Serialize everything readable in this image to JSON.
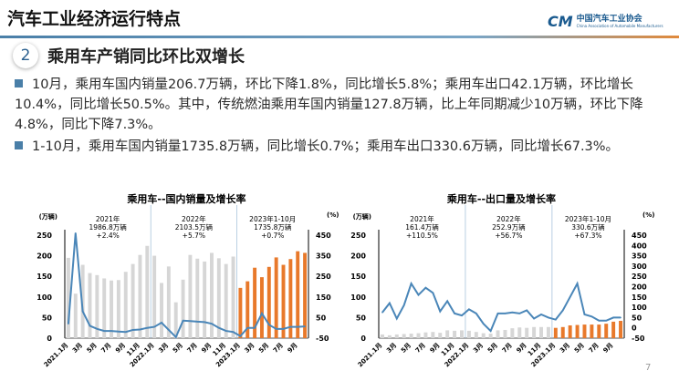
{
  "header": {
    "title": "汽车工业经济运行特点",
    "logo_mark": "CM",
    "logo_text": "中国汽车工业协会",
    "logo_sub": "China Association of Automobile Manufacturers"
  },
  "section": {
    "number": "2",
    "title": "乘用车产销同比环比双增长"
  },
  "bullets": [
    "10月，乘用车国内销量206.7万辆，环比下降1.8%，同比增长5.8%；乘用车出口42.1万辆，环比增长10.4%，同比增长50.5%。其中，传统燃油乘用车国内销量127.8万辆，比上年同期减少10万辆，环比下降4.8%，同比下降7.3%。",
    "1-10月，乘用车国内销量1735.8万辆，同比增长0.7%；乘用车出口330.6万辆，同比增长67.3%。"
  ],
  "page_number": "7",
  "chart_data": [
    {
      "type": "bar+line",
      "title": "乘用车--国内销量及增长率",
      "ylabel": "(万辆)",
      "y2label": "(%)",
      "ylim": [
        0,
        250
      ],
      "y2lim": [
        -50,
        450
      ],
      "yticks": [
        0,
        50,
        100,
        150,
        200,
        250
      ],
      "y2ticks": [
        -50,
        50,
        150,
        250,
        350,
        450
      ],
      "xticklabels": [
        "2021.1月",
        "3月",
        "5月",
        "7月",
        "9月",
        "11月",
        "2022.1月",
        "3月",
        "5月",
        "7月",
        "9月",
        "11月",
        "2023.1月",
        "3月",
        "5月",
        "7月",
        "9月"
      ],
      "annotations": [
        {
          "lines": [
            "2021年",
            "1986.8万辆",
            "+2.4%"
          ]
        },
        {
          "lines": [
            "2022年",
            "2103.5万辆",
            "+5.7%"
          ]
        },
        {
          "lines": [
            "2023年1-10月",
            "1735.8万辆",
            "+0.7%"
          ]
        }
      ],
      "bars": [
        195,
        108,
        178,
        158,
        153,
        145,
        140,
        141,
        161,
        180,
        202,
        224,
        200,
        134,
        174,
        87,
        142,
        202,
        193,
        186,
        207,
        194,
        180,
        198,
        122,
        138,
        171,
        148,
        173,
        196,
        178,
        192,
        211,
        207
      ],
      "growth": [
        20,
        460,
        80,
        10,
        -5,
        -15,
        -15,
        -18,
        -20,
        -10,
        -8,
        0,
        5,
        25,
        -10,
        -45,
        35,
        33,
        30,
        28,
        20,
        0,
        -15,
        -20,
        -40,
        0,
        0,
        70,
        15,
        -5,
        -5,
        5,
        5,
        7
      ],
      "colors": {
        "past": "#d6d6d6",
        "current": "#e8792b",
        "line": "#4a86b8"
      }
    },
    {
      "type": "bar+line",
      "title": "乘用车--出口量及增长率",
      "ylabel": "(万辆)",
      "y2label": "(%)",
      "ylim": [
        0,
        250
      ],
      "y2lim": [
        -50,
        450
      ],
      "yticks": [
        0,
        50,
        100,
        150,
        200,
        250
      ],
      "y2ticks": [
        -50,
        0,
        50,
        100,
        150,
        200,
        250,
        300,
        350,
        400,
        450
      ],
      "xticklabels": [
        "2021.1月",
        "3月",
        "5月",
        "7月",
        "9月",
        "11月",
        "2022.1月",
        "3月",
        "5月",
        "7月",
        "9月",
        "11月",
        "2023.1月",
        "3月",
        "5月",
        "7月",
        "9月"
      ],
      "annotations": [
        {
          "lines": [
            "2021年",
            "161.4万辆",
            "+110.5%"
          ]
        },
        {
          "lines": [
            "2022年",
            "252.9万辆",
            "+56.7%"
          ]
        },
        {
          "lines": [
            "2023年1-10月",
            "330.6万辆",
            "+67.3%"
          ]
        }
      ],
      "bars": [
        9,
        7,
        9,
        10,
        11,
        12,
        14,
        15,
        13,
        19,
        18,
        19,
        18,
        15,
        12,
        11,
        19,
        20,
        24,
        26,
        25,
        27,
        27,
        27,
        25,
        27,
        31,
        32,
        33,
        33,
        33,
        35,
        40,
        42
      ],
      "growth": [
        75,
        120,
        45,
        110,
        215,
        160,
        195,
        170,
        80,
        130,
        70,
        60,
        90,
        70,
        20,
        -15,
        70,
        70,
        75,
        70,
        85,
        45,
        65,
        50,
        40,
        85,
        150,
        215,
        65,
        55,
        35,
        35,
        50,
        50
      ],
      "colors": {
        "past": "#d6d6d6",
        "current": "#e8792b",
        "line": "#4a86b8"
      }
    }
  ]
}
